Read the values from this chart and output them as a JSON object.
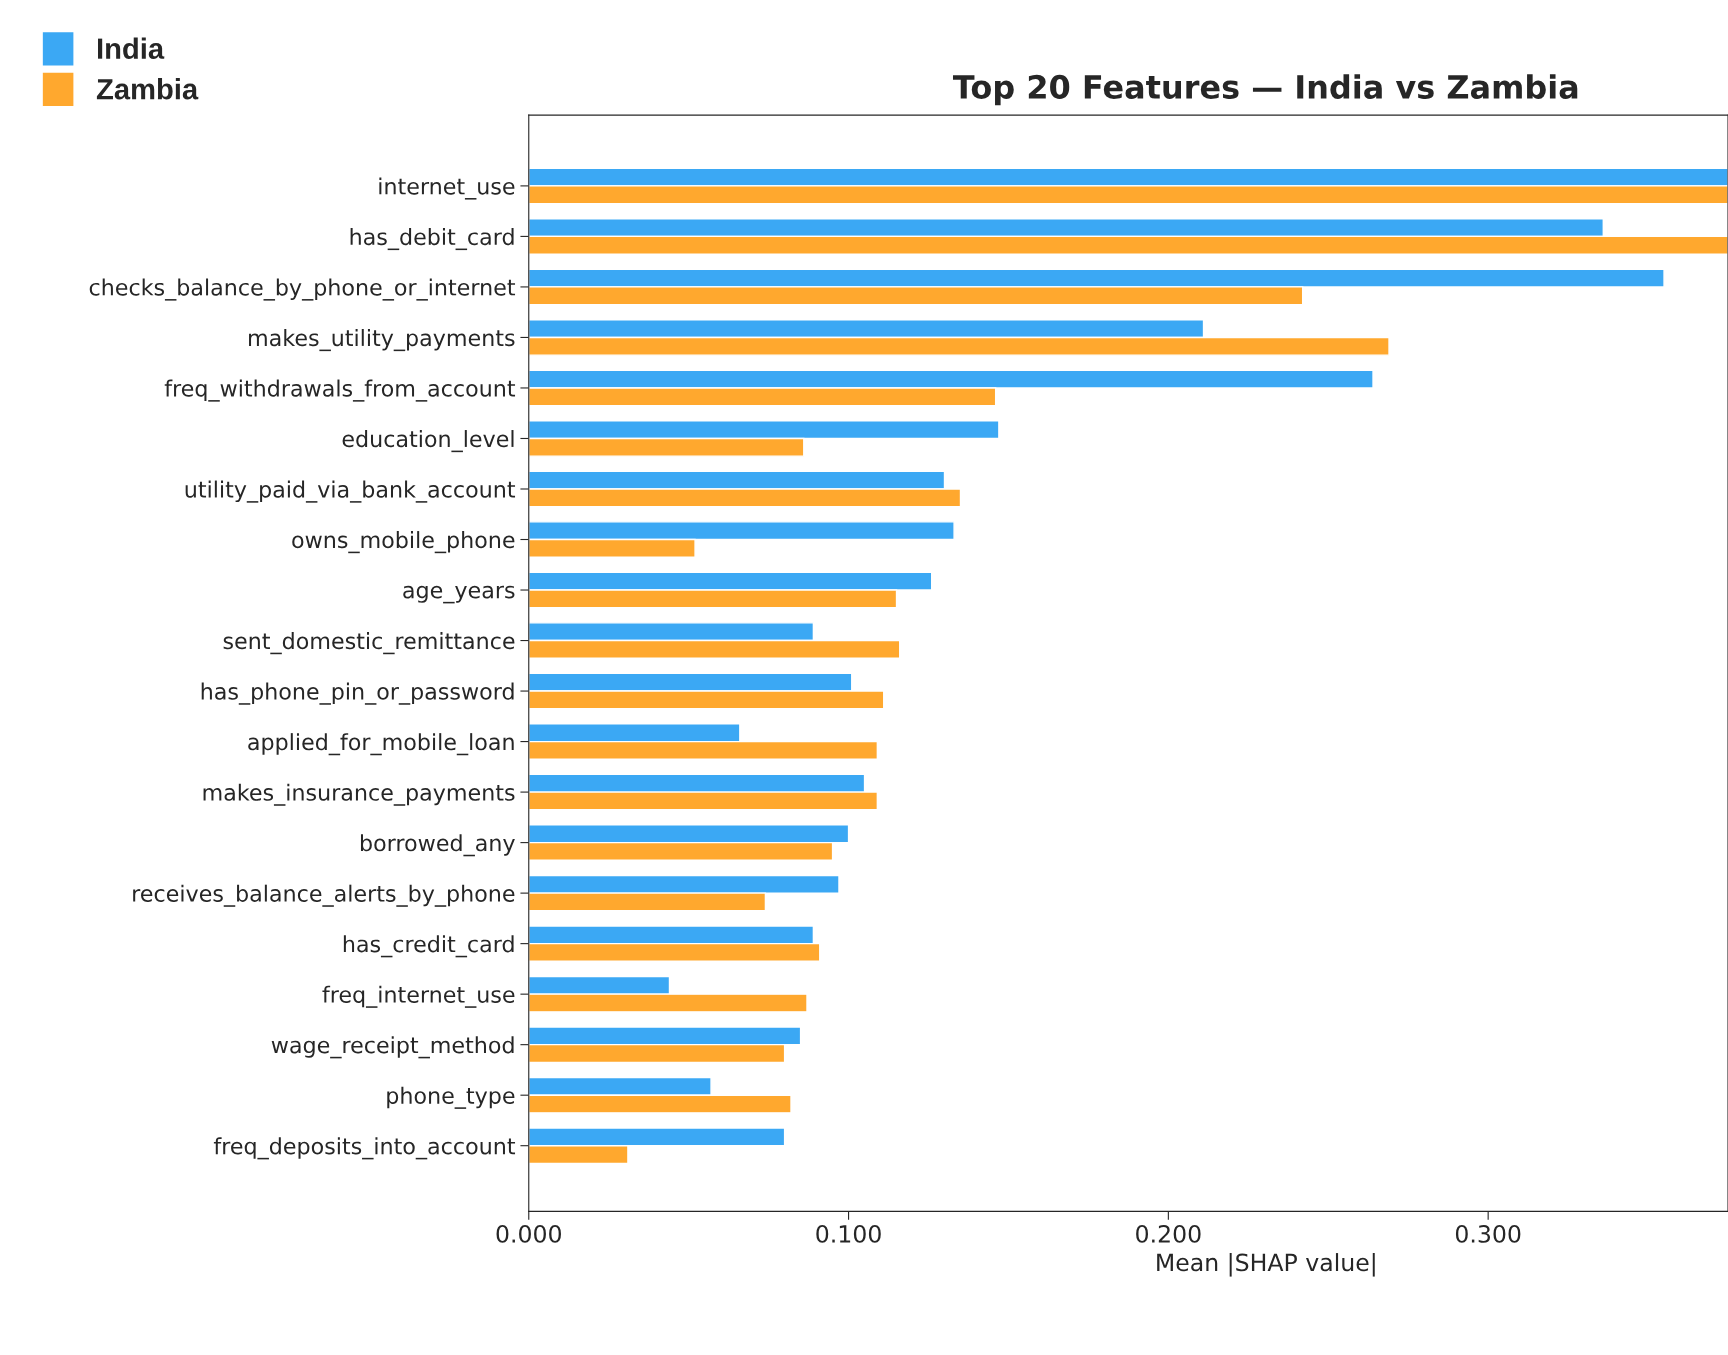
{
  "chart_data": {
    "type": "bar",
    "orientation": "horizontal",
    "title": "Top 20 Features — India vs Zambia",
    "xlabel": "Mean |SHAP value|",
    "categories": [
      "internet_use",
      "has_debit_card",
      "checks_balance_by_phone_or_internet",
      "makes_utility_payments",
      "freq_withdrawals_from_account",
      "education_level",
      "utility_paid_via_bank_account",
      "owns_mobile_phone",
      "age_years",
      "sent_domestic_remittance",
      "has_phone_pin_or_password",
      "applied_for_mobile_loan",
      "makes_insurance_payments",
      "borrowed_any",
      "receives_balance_alerts_by_phone",
      "has_credit_card",
      "freq_internet_use",
      "wage_receipt_method",
      "phone_type",
      "freq_deposits_into_account"
    ],
    "series": [
      {
        "name": "India",
        "color": "#3ba8f4",
        "values": [
          0.375,
          0.336,
          0.355,
          0.211,
          0.264,
          0.147,
          0.13,
          0.133,
          0.126,
          0.089,
          0.101,
          0.066,
          0.105,
          0.1,
          0.097,
          0.089,
          0.044,
          0.085,
          0.057,
          0.08
        ]
      },
      {
        "name": "Zambia",
        "color": "#ffa82e",
        "values": [
          0.375,
          0.375,
          0.242,
          0.269,
          0.146,
          0.086,
          0.135,
          0.052,
          0.115,
          0.116,
          0.111,
          0.109,
          0.109,
          0.095,
          0.074,
          0.091,
          0.087,
          0.08,
          0.082,
          0.031
        ]
      }
    ],
    "xlim": [
      0,
      0.375
    ],
    "xticks": [
      {
        "value": 0,
        "label": "0.000"
      },
      {
        "value": 0.1,
        "label": "0.100"
      },
      {
        "value": 0.2,
        "label": "0.200"
      },
      {
        "value": 0.3,
        "label": "0.300"
      }
    ],
    "legend": "top left",
    "grid": false
  }
}
